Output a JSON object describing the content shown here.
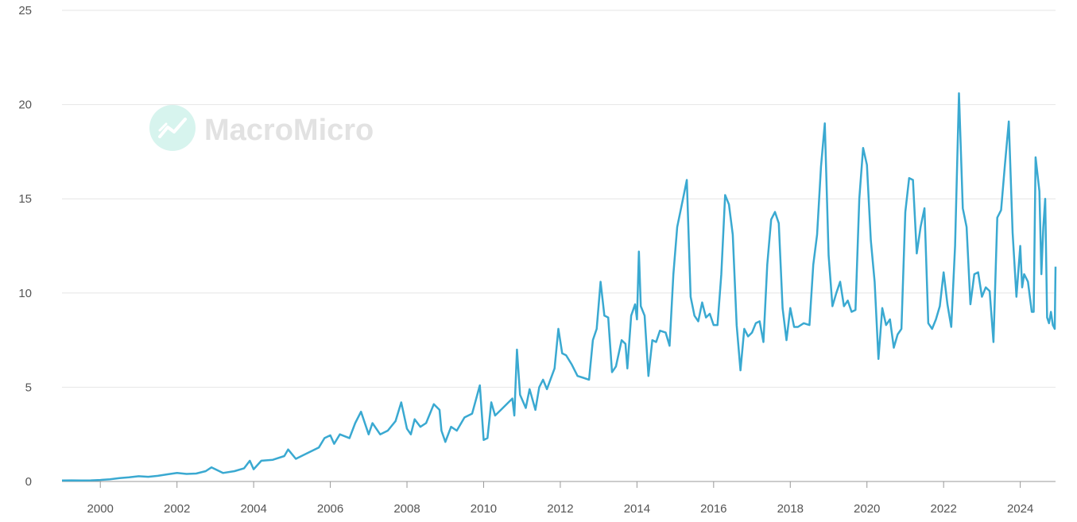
{
  "watermark": {
    "text": "MacroMicro",
    "icon": "macromicro-logo-icon"
  },
  "colors": {
    "line": "#3aa9d1",
    "grid": "#e6e6e6",
    "axis": "#999999",
    "text": "#555555",
    "watermark_icon": "#d7f4ee"
  },
  "chart_data": {
    "type": "line",
    "title": "",
    "xlabel": "",
    "ylabel": "",
    "ylim": [
      0,
      25
    ],
    "xlim": [
      1999.0,
      2024.92
    ],
    "y_ticks": [
      0,
      5,
      10,
      15,
      20,
      25
    ],
    "x_ticks": [
      2000,
      2002,
      2004,
      2006,
      2008,
      2010,
      2012,
      2014,
      2016,
      2018,
      2020,
      2022,
      2024
    ],
    "grid": "horizontal",
    "legend": "none",
    "series": [
      {
        "points": [
          [
            1999.0,
            0.05
          ],
          [
            1999.25,
            0.06
          ],
          [
            1999.5,
            0.05
          ],
          [
            1999.75,
            0.06
          ],
          [
            2000.0,
            0.08
          ],
          [
            2000.25,
            0.12
          ],
          [
            2000.5,
            0.18
          ],
          [
            2000.75,
            0.22
          ],
          [
            2001.0,
            0.28
          ],
          [
            2001.25,
            0.25
          ],
          [
            2001.5,
            0.3
          ],
          [
            2001.75,
            0.38
          ],
          [
            2002.0,
            0.45
          ],
          [
            2002.25,
            0.4
          ],
          [
            2002.5,
            0.42
          ],
          [
            2002.75,
            0.55
          ],
          [
            2002.9,
            0.75
          ],
          [
            2003.2,
            0.45
          ],
          [
            2003.5,
            0.55
          ],
          [
            2003.75,
            0.7
          ],
          [
            2003.9,
            1.1
          ],
          [
            2004.0,
            0.65
          ],
          [
            2004.2,
            1.1
          ],
          [
            2004.5,
            1.15
          ],
          [
            2004.8,
            1.35
          ],
          [
            2004.9,
            1.7
          ],
          [
            2005.1,
            1.2
          ],
          [
            2005.4,
            1.5
          ],
          [
            2005.7,
            1.8
          ],
          [
            2005.85,
            2.3
          ],
          [
            2006.0,
            2.45
          ],
          [
            2006.1,
            2.0
          ],
          [
            2006.25,
            2.5
          ],
          [
            2006.5,
            2.3
          ],
          [
            2006.65,
            3.1
          ],
          [
            2006.8,
            3.7
          ],
          [
            2007.0,
            2.5
          ],
          [
            2007.1,
            3.1
          ],
          [
            2007.3,
            2.5
          ],
          [
            2007.5,
            2.7
          ],
          [
            2007.7,
            3.2
          ],
          [
            2007.85,
            4.2
          ],
          [
            2008.0,
            2.8
          ],
          [
            2008.1,
            2.5
          ],
          [
            2008.2,
            3.3
          ],
          [
            2008.35,
            2.9
          ],
          [
            2008.5,
            3.1
          ],
          [
            2008.7,
            4.1
          ],
          [
            2008.85,
            3.8
          ],
          [
            2008.9,
            2.7
          ],
          [
            2009.0,
            2.1
          ],
          [
            2009.15,
            2.9
          ],
          [
            2009.3,
            2.7
          ],
          [
            2009.5,
            3.4
          ],
          [
            2009.7,
            3.6
          ],
          [
            2009.9,
            5.1
          ],
          [
            2010.0,
            2.2
          ],
          [
            2010.1,
            2.3
          ],
          [
            2010.2,
            4.2
          ],
          [
            2010.3,
            3.5
          ],
          [
            2010.45,
            3.8
          ],
          [
            2010.6,
            4.1
          ],
          [
            2010.75,
            4.4
          ],
          [
            2010.8,
            3.5
          ],
          [
            2010.87,
            7.0
          ],
          [
            2010.95,
            4.6
          ],
          [
            2011.1,
            3.9
          ],
          [
            2011.2,
            4.9
          ],
          [
            2011.35,
            3.8
          ],
          [
            2011.45,
            5.0
          ],
          [
            2011.55,
            5.4
          ],
          [
            2011.65,
            4.9
          ],
          [
            2011.85,
            6.0
          ],
          [
            2011.95,
            8.1
          ],
          [
            2012.05,
            6.8
          ],
          [
            2012.15,
            6.7
          ],
          [
            2012.3,
            6.2
          ],
          [
            2012.45,
            5.6
          ],
          [
            2012.6,
            5.5
          ],
          [
            2012.75,
            5.4
          ],
          [
            2012.85,
            7.5
          ],
          [
            2012.95,
            8.1
          ],
          [
            2013.05,
            10.6
          ],
          [
            2013.15,
            8.8
          ],
          [
            2013.25,
            8.7
          ],
          [
            2013.35,
            5.8
          ],
          [
            2013.45,
            6.1
          ],
          [
            2013.6,
            7.5
          ],
          [
            2013.7,
            7.3
          ],
          [
            2013.75,
            6.0
          ],
          [
            2013.85,
            8.8
          ],
          [
            2013.95,
            9.4
          ],
          [
            2014.0,
            8.6
          ],
          [
            2014.05,
            12.2
          ],
          [
            2014.1,
            9.3
          ],
          [
            2014.2,
            8.8
          ],
          [
            2014.3,
            5.6
          ],
          [
            2014.4,
            7.5
          ],
          [
            2014.5,
            7.4
          ],
          [
            2014.6,
            8.0
          ],
          [
            2014.75,
            7.9
          ],
          [
            2014.85,
            7.2
          ],
          [
            2014.95,
            11.0
          ],
          [
            2015.05,
            13.5
          ],
          [
            2015.2,
            15.0
          ],
          [
            2015.3,
            16.0
          ],
          [
            2015.4,
            9.8
          ],
          [
            2015.5,
            8.8
          ],
          [
            2015.6,
            8.5
          ],
          [
            2015.7,
            9.5
          ],
          [
            2015.8,
            8.7
          ],
          [
            2015.9,
            8.9
          ],
          [
            2016.0,
            8.3
          ],
          [
            2016.1,
            8.3
          ],
          [
            2016.2,
            11.0
          ],
          [
            2016.3,
            15.2
          ],
          [
            2016.4,
            14.7
          ],
          [
            2016.5,
            13.1
          ],
          [
            2016.6,
            8.3
          ],
          [
            2016.7,
            5.9
          ],
          [
            2016.8,
            8.1
          ],
          [
            2016.9,
            7.7
          ],
          [
            2017.0,
            7.9
          ],
          [
            2017.1,
            8.4
          ],
          [
            2017.2,
            8.5
          ],
          [
            2017.3,
            7.4
          ],
          [
            2017.4,
            11.5
          ],
          [
            2017.5,
            13.9
          ],
          [
            2017.6,
            14.3
          ],
          [
            2017.7,
            13.7
          ],
          [
            2017.8,
            9.2
          ],
          [
            2017.9,
            7.5
          ],
          [
            2018.0,
            9.2
          ],
          [
            2018.1,
            8.2
          ],
          [
            2018.2,
            8.2
          ],
          [
            2018.35,
            8.4
          ],
          [
            2018.5,
            8.3
          ],
          [
            2018.6,
            11.5
          ],
          [
            2018.7,
            13.1
          ],
          [
            2018.8,
            16.7
          ],
          [
            2018.9,
            19.0
          ],
          [
            2019.0,
            12.0
          ],
          [
            2019.1,
            9.3
          ],
          [
            2019.2,
            10.0
          ],
          [
            2019.3,
            10.6
          ],
          [
            2019.4,
            9.3
          ],
          [
            2019.5,
            9.6
          ],
          [
            2019.6,
            9.0
          ],
          [
            2019.7,
            9.1
          ],
          [
            2019.8,
            15.0
          ],
          [
            2019.9,
            17.7
          ],
          [
            2020.0,
            16.8
          ],
          [
            2020.1,
            12.8
          ],
          [
            2020.2,
            10.6
          ],
          [
            2020.3,
            6.5
          ],
          [
            2020.4,
            9.2
          ],
          [
            2020.5,
            8.3
          ],
          [
            2020.6,
            8.6
          ],
          [
            2020.7,
            7.1
          ],
          [
            2020.8,
            7.8
          ],
          [
            2020.9,
            8.1
          ],
          [
            2021.0,
            14.3
          ],
          [
            2021.1,
            16.1
          ],
          [
            2021.2,
            16.0
          ],
          [
            2021.3,
            12.1
          ],
          [
            2021.4,
            13.5
          ],
          [
            2021.5,
            14.5
          ],
          [
            2021.6,
            8.4
          ],
          [
            2021.7,
            8.1
          ],
          [
            2021.8,
            8.6
          ],
          [
            2021.9,
            9.3
          ],
          [
            2022.0,
            11.1
          ],
          [
            2022.1,
            9.4
          ],
          [
            2022.2,
            8.2
          ],
          [
            2022.3,
            12.5
          ],
          [
            2022.4,
            20.6
          ],
          [
            2022.5,
            14.5
          ],
          [
            2022.6,
            13.5
          ],
          [
            2022.7,
            9.4
          ],
          [
            2022.8,
            11.0
          ],
          [
            2022.9,
            11.1
          ],
          [
            2023.0,
            9.8
          ],
          [
            2023.1,
            10.3
          ],
          [
            2023.2,
            10.1
          ],
          [
            2023.3,
            7.4
          ],
          [
            2023.4,
            14.0
          ],
          [
            2023.5,
            14.4
          ],
          [
            2023.6,
            16.8
          ],
          [
            2023.7,
            19.1
          ],
          [
            2023.8,
            13.2
          ],
          [
            2023.9,
            9.8
          ],
          [
            2024.0,
            12.5
          ],
          [
            2024.05,
            10.3
          ],
          [
            2024.1,
            11.0
          ],
          [
            2024.2,
            10.6
          ],
          [
            2024.3,
            9.0
          ],
          [
            2024.35,
            9.0
          ],
          [
            2024.4,
            17.2
          ],
          [
            2024.5,
            15.4
          ],
          [
            2024.55,
            11.0
          ],
          [
            2024.6,
            13.5
          ],
          [
            2024.65,
            15.0
          ],
          [
            2024.7,
            8.7
          ],
          [
            2024.75,
            8.4
          ],
          [
            2024.8,
            9.0
          ],
          [
            2024.85,
            8.3
          ],
          [
            2024.9,
            8.1
          ],
          [
            2024.92,
            11.4
          ]
        ]
      }
    ]
  }
}
